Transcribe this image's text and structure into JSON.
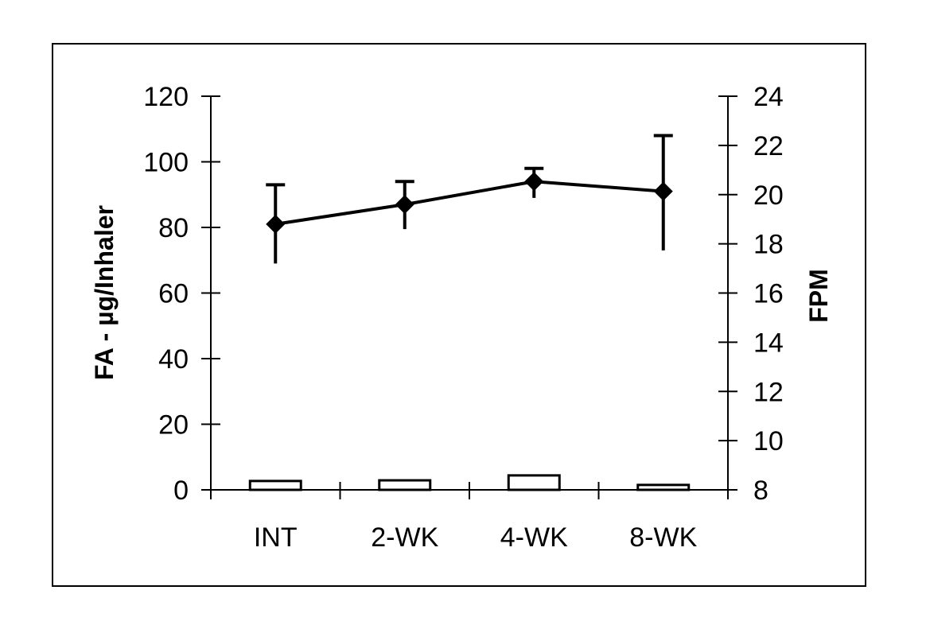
{
  "chart_data": {
    "type": "line+bar",
    "title": "",
    "categories": [
      "INT",
      "2-WK",
      "4-WK",
      "8-WK"
    ],
    "ylabel": "FA - µg/Inhaler",
    "y2label": "FPM",
    "ylim": [
      0,
      120
    ],
    "y2lim": [
      8,
      24
    ],
    "yticks": [
      0,
      20,
      40,
      60,
      80,
      100,
      120
    ],
    "y2ticks": [
      8,
      10,
      12,
      14,
      16,
      18,
      20,
      22,
      24
    ],
    "grid": false,
    "legend": null,
    "series": [
      {
        "name": "FA (µg/Inhaler)",
        "type": "line",
        "marker": "diamond",
        "axis": "left",
        "values": [
          81,
          87,
          94,
          91
        ],
        "error_upper": [
          93,
          94,
          98,
          108
        ],
        "error_lower": [
          69,
          79.5,
          89,
          73
        ]
      },
      {
        "name": "FPM",
        "type": "bar",
        "axis": "left",
        "values": [
          2.7,
          2.9,
          4.4,
          1.5
        ]
      }
    ]
  }
}
